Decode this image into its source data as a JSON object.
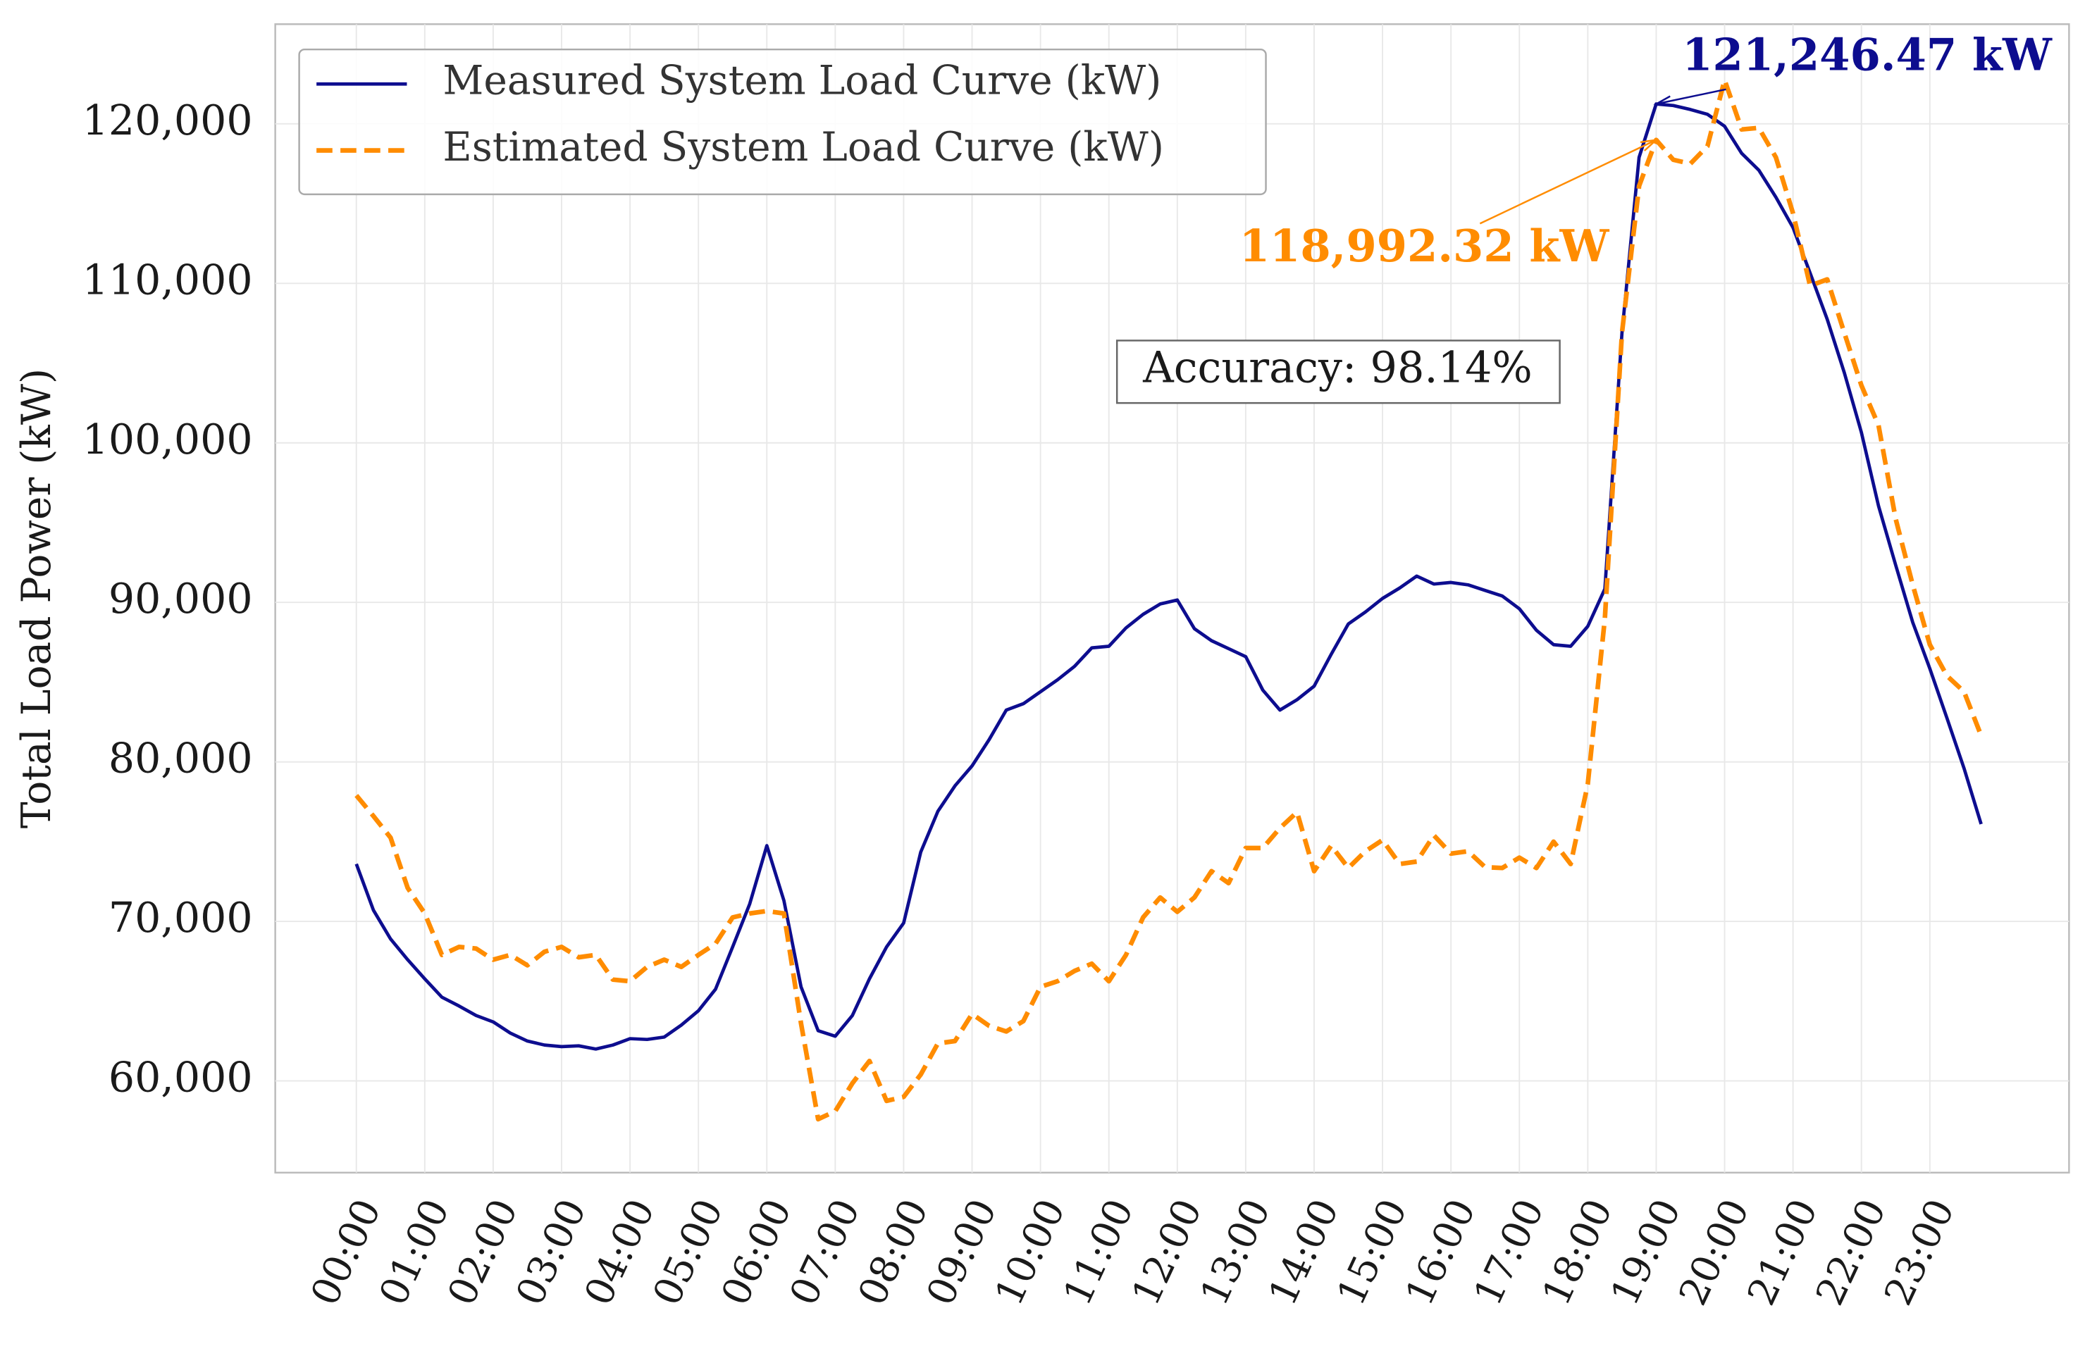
{
  "chart_data": {
    "type": "line",
    "y_label": "Total Load Power (kW)",
    "categories": [
      "00:00",
      null,
      null,
      null,
      "01:00",
      null,
      null,
      null,
      "02:00",
      null,
      null,
      null,
      "03:00",
      null,
      null,
      null,
      "04:00",
      null,
      null,
      null,
      "05:00",
      null,
      null,
      null,
      "06:00",
      null,
      null,
      null,
      "07:00",
      null,
      null,
      null,
      "08:00",
      null,
      null,
      null,
      "09:00",
      null,
      null,
      null,
      "10:00",
      null,
      null,
      null,
      "11:00",
      null,
      null,
      null,
      "12:00",
      null,
      null,
      null,
      "13:00",
      null,
      null,
      null,
      "14:00",
      null,
      null,
      null,
      "15:00",
      null,
      null,
      null,
      "16:00",
      null,
      null,
      null,
      "17:00",
      null,
      null,
      null,
      "18:00",
      null,
      null,
      null,
      "19:00",
      null,
      null,
      null,
      "20:00",
      null,
      null,
      null,
      "21:00",
      null,
      null,
      null,
      "22:00",
      null,
      null,
      null,
      "23:00",
      null,
      null,
      null
    ],
    "series": [
      {
        "name": "Measured System Load Curve (kW)",
        "color": "#0d0d8f",
        "dash": false,
        "values": [
          73600,
          70700,
          68900,
          67600,
          66400,
          65250,
          64700,
          64100,
          63700,
          63000,
          62500,
          62250,
          62150,
          62200,
          62000,
          62250,
          62650,
          62600,
          62750,
          63500,
          64400,
          65750,
          68400,
          71100,
          74750,
          71300,
          65900,
          63150,
          62800,
          64100,
          66400,
          68400,
          69900,
          74350,
          76900,
          78500,
          79750,
          81400,
          83250,
          83650,
          84400,
          85150,
          86000,
          87150,
          87250,
          88400,
          89250,
          89900,
          90150,
          88350,
          87600,
          87100,
          86600,
          84500,
          83250,
          83900,
          84750,
          86750,
          88650,
          89400,
          90250,
          90900,
          91650,
          91150,
          91250,
          91100,
          90750,
          90400,
          89600,
          88250,
          87350,
          87250,
          88500,
          90850,
          106900,
          117900,
          121246.47,
          121150,
          120900,
          120600,
          119850,
          118150,
          117100,
          115400,
          113500,
          110650,
          107750,
          104400,
          100650,
          96050,
          92350,
          88750,
          85850,
          82750,
          79600,
          76100
        ]
      },
      {
        "name": "Estimated System Load Curve (kW)",
        "color": "#ff8c00",
        "dash": true,
        "values": [
          77900,
          76600,
          75250,
          72100,
          70500,
          67900,
          68400,
          68300,
          67600,
          67900,
          67250,
          68100,
          68400,
          67750,
          67900,
          66350,
          66250,
          67150,
          67600,
          67150,
          67900,
          68600,
          70250,
          70500,
          70650,
          70500,
          63600,
          57600,
          58100,
          59850,
          61250,
          58750,
          59000,
          60400,
          62350,
          62500,
          64200,
          63450,
          63100,
          63750,
          65900,
          66250,
          66900,
          67350,
          66250,
          67900,
          70250,
          71500,
          70600,
          71500,
          73150,
          72400,
          74600,
          74600,
          75850,
          76850,
          73150,
          74750,
          73350,
          74400,
          75100,
          73600,
          73750,
          75400,
          74250,
          74400,
          73400,
          73350,
          74000,
          73350,
          75000,
          73600,
          78600,
          89000,
          106900,
          116100,
          118992.32,
          117750,
          117500,
          118600,
          122750,
          119650,
          119750,
          117900,
          114400,
          109850,
          110250,
          106900,
          103600,
          101100,
          95250,
          91100,
          87350,
          85400,
          84400,
          81650
        ]
      }
    ],
    "annotations": [
      {
        "label": "121,246.47 kW",
        "value": 121246.47,
        "series": 0
      },
      {
        "label": "118,992.32 kW",
        "value": 118992.32,
        "series": 1
      }
    ],
    "text_box": "Accuracy: 98.14%",
    "ylim": [
      54250,
      126250
    ],
    "yticks": [
      {
        "value": 60000,
        "label": "60,000"
      },
      {
        "value": 70000,
        "label": "70,000"
      },
      {
        "value": 80000,
        "label": "80,000"
      },
      {
        "value": 90000,
        "label": "90,000"
      },
      {
        "value": 100000,
        "label": "100,000"
      },
      {
        "value": 110000,
        "label": "110,000"
      },
      {
        "value": 120000,
        "label": "120,000"
      }
    ],
    "grid": true,
    "legend": "upper left"
  }
}
